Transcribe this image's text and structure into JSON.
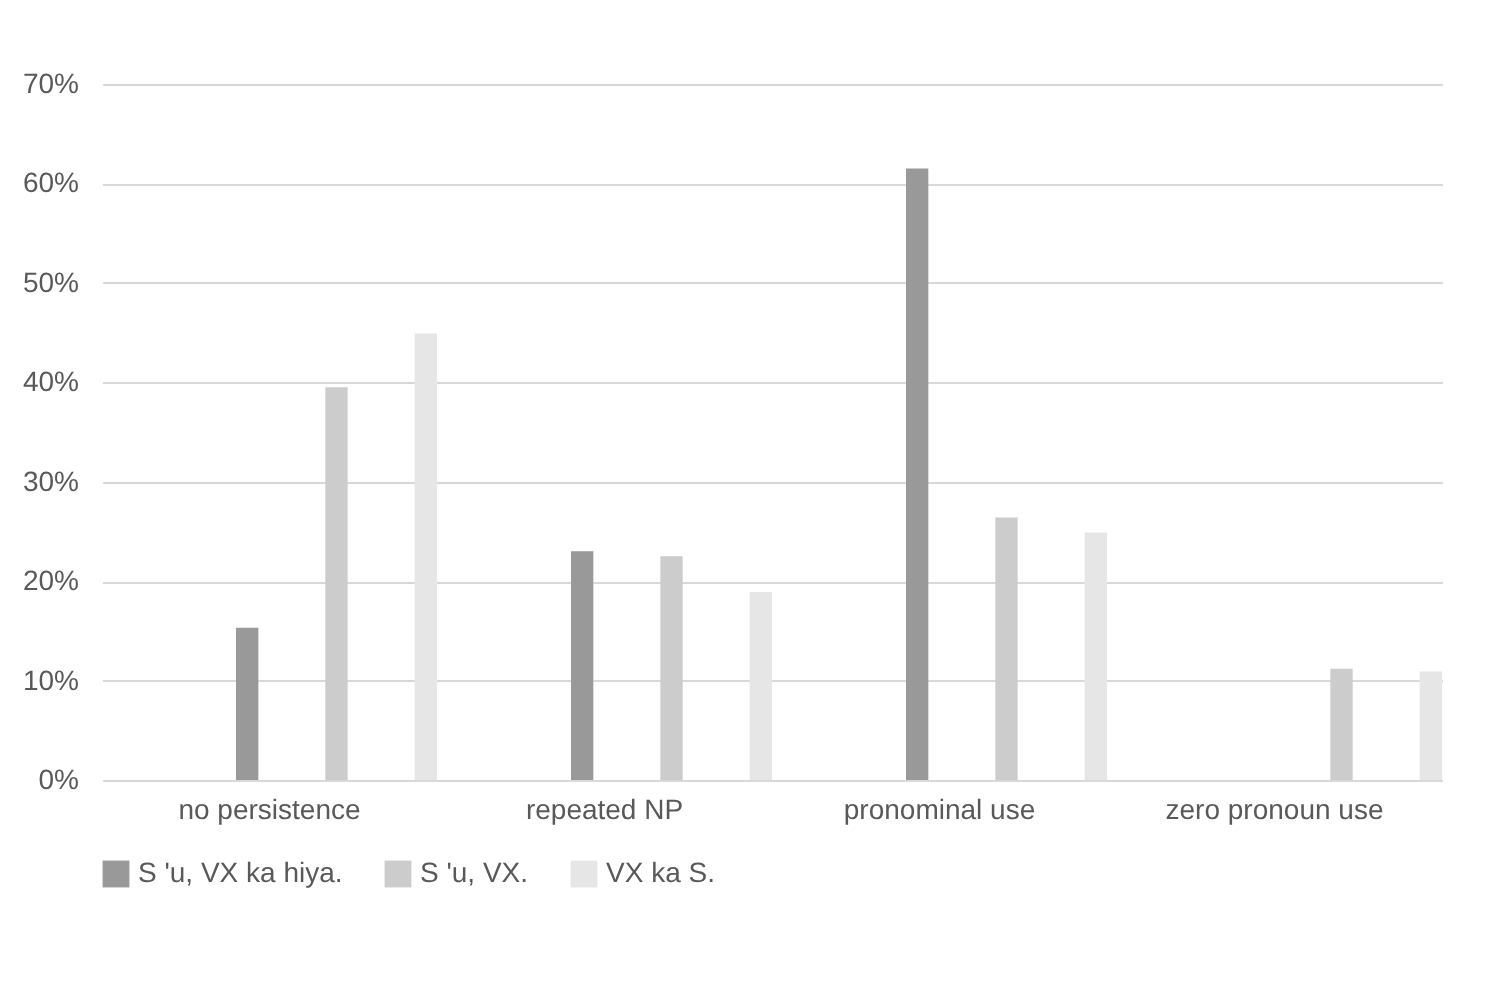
{
  "chart_data": {
    "type": "bar",
    "categories": [
      "no persistence",
      "repeated NP",
      "pronominal use",
      "zero pronoun use"
    ],
    "series": [
      {
        "name": "S 'u, VX ka hiya.",
        "color": "#999999",
        "values": [
          15.3,
          23.0,
          61.5,
          null
        ]
      },
      {
        "name": "S 'u, VX.",
        "color": "#cccccc",
        "values": [
          39.5,
          22.5,
          26.4,
          11.2
        ]
      },
      {
        "name": "VX ka S.",
        "color": "#e6e6e6",
        "values": [
          44.9,
          18.9,
          24.9,
          10.9
        ]
      }
    ],
    "ylim": [
      0,
      70
    ],
    "yticks": [
      {
        "value": 0,
        "label": "0%"
      },
      {
        "value": 10,
        "label": "10%"
      },
      {
        "value": 20,
        "label": "20%"
      },
      {
        "value": 30,
        "label": "30%"
      },
      {
        "value": 40,
        "label": "40%"
      },
      {
        "value": 50,
        "label": "50%"
      },
      {
        "value": 60,
        "label": "60%"
      },
      {
        "value": 70,
        "label": "70%"
      }
    ],
    "grid": "y",
    "legend": "bottom"
  }
}
